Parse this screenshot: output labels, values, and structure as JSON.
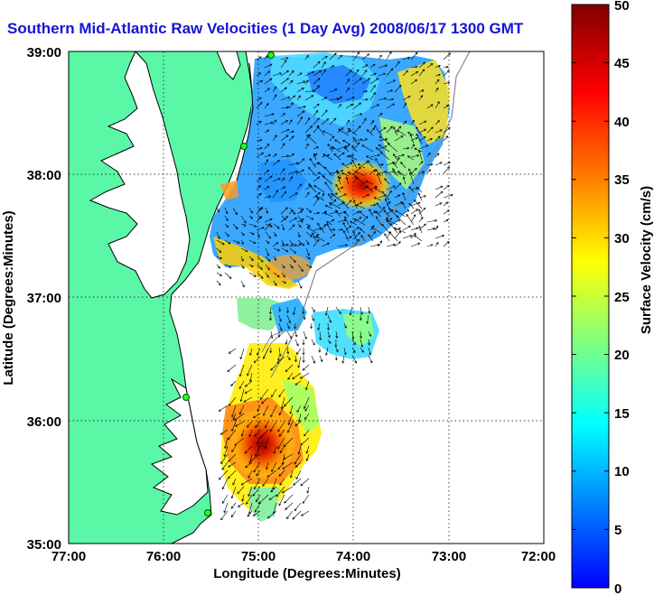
{
  "title": "Southern Mid-Atlantic Raw Velocities (1 Day Avg) 2008/06/17 1300 GMT",
  "x_axis": {
    "label": "Longitude (Degrees:Minutes)",
    "ticks": [
      "77:00",
      "76:00",
      "75:00",
      "74:00",
      "73:00",
      "72:00"
    ]
  },
  "y_axis": {
    "label": "Latitude (Degrees:Minutes)",
    "ticks": [
      "39:00",
      "38:00",
      "37:00",
      "36:00",
      "35:00"
    ]
  },
  "colorbar": {
    "label": "Surface Velocity (cm/s)",
    "ticks": [
      "0",
      "5",
      "10",
      "15",
      "20",
      "25",
      "30",
      "35",
      "40",
      "45",
      "50"
    ],
    "min": 0,
    "max": 50,
    "colors": [
      "#0000ff",
      "#0080ff",
      "#00ffff",
      "#80ff80",
      "#ffff00",
      "#ff8000",
      "#ff0000",
      "#800000"
    ]
  },
  "colors": {
    "land": "#5af7a7",
    "title": "#1414d6"
  },
  "grid": "dotted",
  "site_markers": 4
}
